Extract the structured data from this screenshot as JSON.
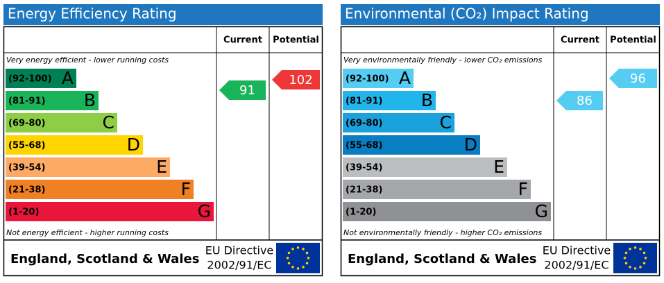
{
  "panels": [
    {
      "title": "Energy Efficiency Rating",
      "current_header": "Current",
      "potential_header": "Potential",
      "top_note": "Very energy efficient - lower running costs",
      "bottom_note": "Not energy efficient - higher running costs",
      "bands": [
        {
          "range": "(92-100)",
          "letter": "A",
          "color": "#008054"
        },
        {
          "range": "(81-91)",
          "letter": "B",
          "color": "#19b459"
        },
        {
          "range": "(69-80)",
          "letter": "C",
          "color": "#8dce46"
        },
        {
          "range": "(55-68)",
          "letter": "D",
          "color": "#ffd500"
        },
        {
          "range": "(39-54)",
          "letter": "E",
          "color": "#fcaa65"
        },
        {
          "range": "(21-38)",
          "letter": "F",
          "color": "#ef8023"
        },
        {
          "range": "(1-20)",
          "letter": "G",
          "color": "#e9153b"
        }
      ],
      "current": 91,
      "current_color": "#19b459",
      "potential": 102,
      "potential_color": "#ee3838",
      "region": "England, Scotland & Wales",
      "directive": [
        "EU Directive",
        "2002/91/EC"
      ]
    },
    {
      "title": "Environmental (CO₂) Impact Rating",
      "current_header": "Current",
      "potential_header": "Potential",
      "top_note": "Very environmentally friendly - lower CO₂ emissions",
      "bottom_note": "Not environmentally friendly - higher CO₂ emissions",
      "bands": [
        {
          "range": "(92-100)",
          "letter": "A",
          "color": "#55ccf2"
        },
        {
          "range": "(81-91)",
          "letter": "B",
          "color": "#22b5eb"
        },
        {
          "range": "(69-80)",
          "letter": "C",
          "color": "#1ba1db"
        },
        {
          "range": "(55-68)",
          "letter": "D",
          "color": "#0a7ec3"
        },
        {
          "range": "(39-54)",
          "letter": "E",
          "color": "#bbbdbf"
        },
        {
          "range": "(21-38)",
          "letter": "F",
          "color": "#a5a7aa"
        },
        {
          "range": "(1-20)",
          "letter": "G",
          "color": "#8f9194"
        }
      ],
      "current": 86,
      "current_color": "#55ccf2",
      "potential": 96,
      "potential_color": "#55ccf2",
      "region": "England, Scotland & Wales",
      "directive": [
        "EU Directive",
        "2002/91/EC"
      ]
    }
  ]
}
